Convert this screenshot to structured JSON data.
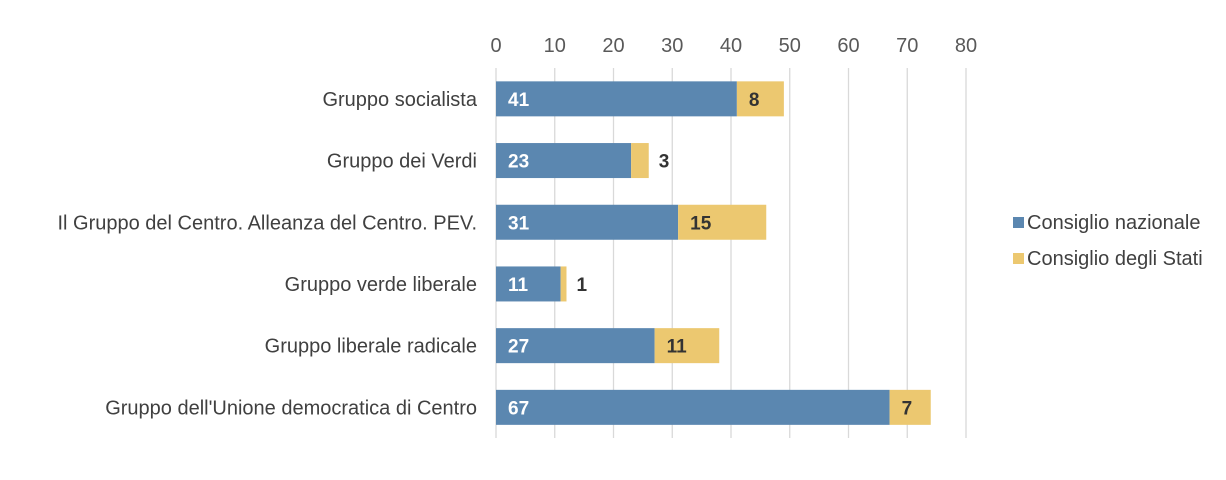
{
  "chart_data": {
    "type": "bar",
    "orientation": "horizontal",
    "stacked": true,
    "categories": [
      "Gruppo socialista",
      "Gruppo dei Verdi",
      "Il Gruppo del Centro. Alleanza del Centro. PEV.",
      "Gruppo verde liberale",
      "Gruppo liberale radicale",
      "Gruppo dell'Unione democratica di Centro"
    ],
    "series": [
      {
        "name": "Consiglio nazionale",
        "color": "#5b87b0",
        "label_color": "#ffffff",
        "values": [
          41,
          23,
          31,
          11,
          27,
          67
        ]
      },
      {
        "name": "Consiglio degli Stati",
        "color": "#ecc870",
        "label_color": "#333333",
        "values": [
          8,
          3,
          15,
          1,
          11,
          7
        ]
      }
    ],
    "xlim": [
      0,
      80
    ],
    "xticks": [
      "0",
      "10",
      "20",
      "30",
      "40",
      "50",
      "60",
      "70",
      "80"
    ],
    "x_axis_position": "top",
    "grid": "vertical",
    "gridline_color": "#d9d9d9",
    "legend": "right",
    "title": "",
    "xlabel": "",
    "ylabel": ""
  }
}
